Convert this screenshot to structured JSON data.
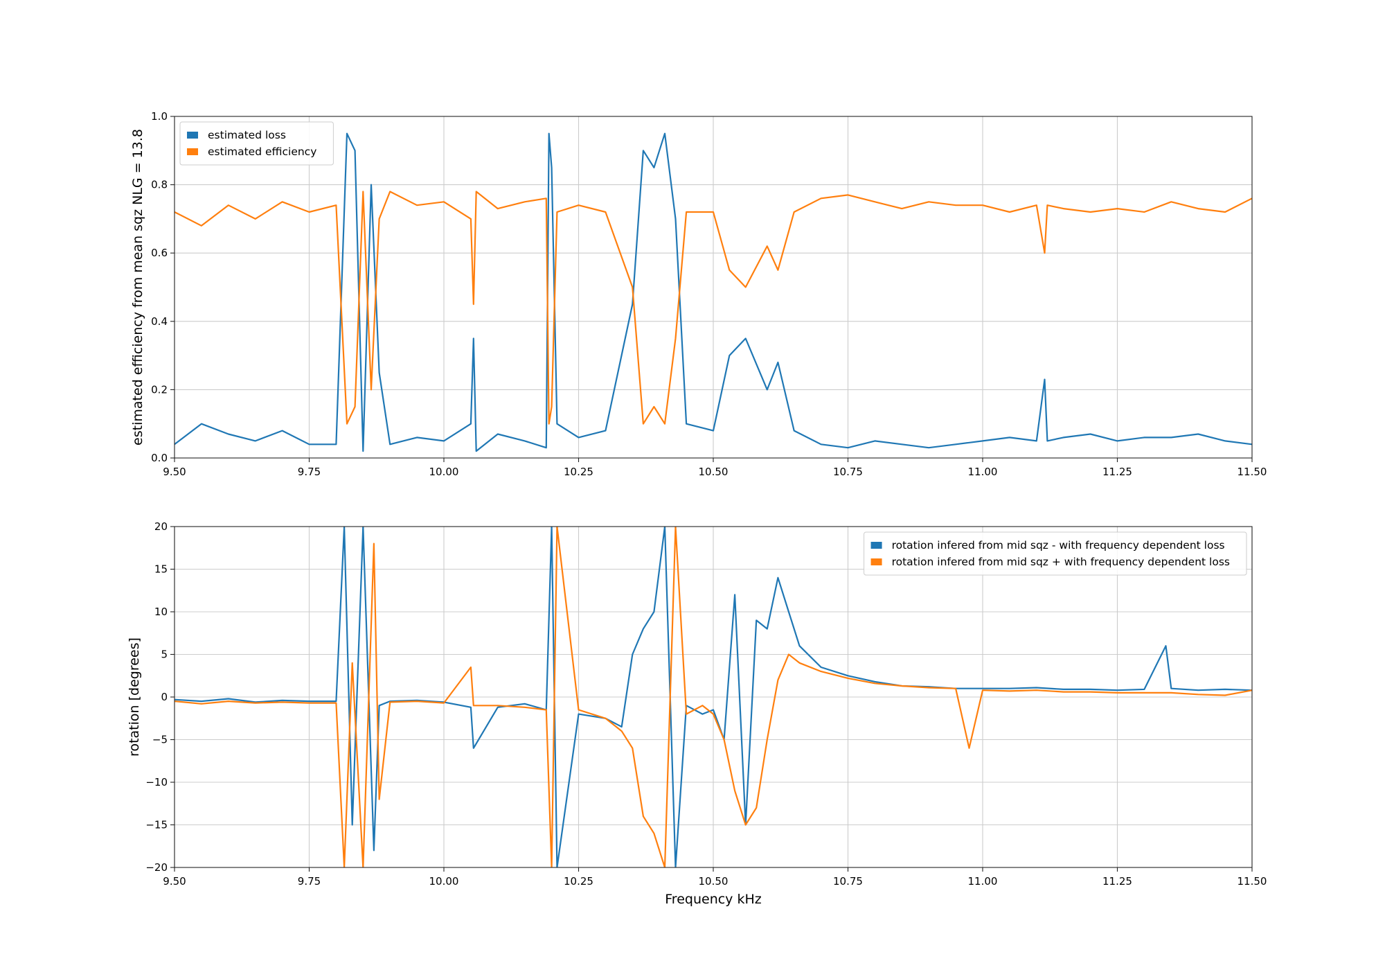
{
  "chart_data": [
    {
      "type": "line",
      "xlim": [
        9.5,
        11.5
      ],
      "ylim": [
        0,
        1
      ],
      "xticks": [
        "9.50",
        "9.75",
        "10.00",
        "10.25",
        "10.50",
        "10.75",
        "11.00",
        "11.25",
        "11.50"
      ],
      "yticks": [
        "0.0",
        "0.2",
        "0.4",
        "0.6",
        "0.8",
        "1.0"
      ],
      "ylabel": "estimated efficiency from mean sqz NLG = 13.8",
      "xlabel": "",
      "grid": true,
      "legend_position": "upper-left",
      "series": [
        {
          "name": "estimated loss",
          "color": "#1f77b4",
          "x": [
            9.5,
            9.55,
            9.6,
            9.65,
            9.7,
            9.75,
            9.8,
            9.82,
            9.835,
            9.85,
            9.865,
            9.88,
            9.9,
            9.95,
            10.0,
            10.05,
            10.055,
            10.06,
            10.1,
            10.15,
            10.19,
            10.195,
            10.2,
            10.21,
            10.25,
            10.3,
            10.35,
            10.37,
            10.39,
            10.41,
            10.43,
            10.45,
            10.5,
            10.53,
            10.56,
            10.6,
            10.62,
            10.65,
            10.7,
            10.75,
            10.8,
            10.85,
            10.9,
            10.95,
            11.0,
            11.05,
            11.1,
            11.115,
            11.12,
            11.15,
            11.2,
            11.25,
            11.3,
            11.35,
            11.4,
            11.45,
            11.5
          ],
          "y": [
            0.04,
            0.1,
            0.07,
            0.05,
            0.08,
            0.04,
            0.04,
            0.95,
            0.9,
            0.02,
            0.8,
            0.25,
            0.04,
            0.06,
            0.05,
            0.1,
            0.35,
            0.02,
            0.07,
            0.05,
            0.03,
            0.95,
            0.85,
            0.1,
            0.06,
            0.08,
            0.45,
            0.9,
            0.85,
            0.95,
            0.7,
            0.1,
            0.08,
            0.3,
            0.35,
            0.2,
            0.28,
            0.08,
            0.04,
            0.03,
            0.05,
            0.04,
            0.03,
            0.04,
            0.05,
            0.06,
            0.05,
            0.23,
            0.05,
            0.06,
            0.07,
            0.05,
            0.06,
            0.06,
            0.07,
            0.05,
            0.04
          ]
        },
        {
          "name": "estimated efficiency",
          "color": "#ff7f0e",
          "x": [
            9.5,
            9.55,
            9.6,
            9.65,
            9.7,
            9.75,
            9.8,
            9.82,
            9.835,
            9.85,
            9.865,
            9.88,
            9.9,
            9.95,
            10.0,
            10.05,
            10.055,
            10.06,
            10.1,
            10.15,
            10.19,
            10.195,
            10.2,
            10.21,
            10.25,
            10.3,
            10.35,
            10.37,
            10.39,
            10.41,
            10.43,
            10.45,
            10.5,
            10.53,
            10.56,
            10.6,
            10.62,
            10.65,
            10.7,
            10.75,
            10.8,
            10.85,
            10.9,
            10.95,
            11.0,
            11.05,
            11.1,
            11.115,
            11.12,
            11.15,
            11.2,
            11.25,
            11.3,
            11.35,
            11.4,
            11.45,
            11.5
          ],
          "y": [
            0.72,
            0.68,
            0.74,
            0.7,
            0.75,
            0.72,
            0.74,
            0.1,
            0.15,
            0.78,
            0.2,
            0.7,
            0.78,
            0.74,
            0.75,
            0.7,
            0.45,
            0.78,
            0.73,
            0.75,
            0.76,
            0.1,
            0.15,
            0.72,
            0.74,
            0.72,
            0.5,
            0.1,
            0.15,
            0.1,
            0.35,
            0.72,
            0.72,
            0.55,
            0.5,
            0.62,
            0.55,
            0.72,
            0.76,
            0.77,
            0.75,
            0.73,
            0.75,
            0.74,
            0.74,
            0.72,
            0.74,
            0.6,
            0.74,
            0.73,
            0.72,
            0.73,
            0.72,
            0.75,
            0.73,
            0.72,
            0.76
          ]
        }
      ]
    },
    {
      "type": "line",
      "xlim": [
        9.5,
        11.5
      ],
      "ylim": [
        -20,
        20
      ],
      "xticks": [
        "9.50",
        "9.75",
        "10.00",
        "10.25",
        "10.50",
        "10.75",
        "11.00",
        "11.25",
        "11.50"
      ],
      "yticks": [
        "−20",
        "−15",
        "−10",
        "−5",
        "0",
        "5",
        "10",
        "15",
        "20"
      ],
      "ylabel": "rotation [degrees]",
      "xlabel": "Frequency kHz",
      "grid": true,
      "legend_position": "upper-right",
      "series": [
        {
          "name": "rotation infered from mid sqz - with frequency dependent loss",
          "color": "#1f77b4",
          "x": [
            9.5,
            9.55,
            9.6,
            9.65,
            9.7,
            9.75,
            9.8,
            9.815,
            9.83,
            9.85,
            9.87,
            9.88,
            9.9,
            9.95,
            10.0,
            10.05,
            10.055,
            10.1,
            10.15,
            10.19,
            10.2,
            10.21,
            10.25,
            10.3,
            10.33,
            10.35,
            10.37,
            10.39,
            10.41,
            10.43,
            10.45,
            10.48,
            10.5,
            10.52,
            10.54,
            10.56,
            10.58,
            10.6,
            10.62,
            10.64,
            10.66,
            10.7,
            10.75,
            10.8,
            10.85,
            10.9,
            10.95,
            11.0,
            11.05,
            11.1,
            11.15,
            11.2,
            11.25,
            11.3,
            11.34,
            11.35,
            11.4,
            11.45,
            11.5
          ],
          "y": [
            -0.3,
            -0.5,
            -0.2,
            -0.6,
            -0.4,
            -0.5,
            -0.5,
            20,
            -15,
            20,
            -18,
            -1,
            -0.5,
            -0.4,
            -0.6,
            -1.2,
            -6,
            -1.2,
            -0.8,
            -1.5,
            20,
            -20,
            -2,
            -2.5,
            -3.5,
            5,
            8,
            10,
            20,
            -20,
            -1,
            -2,
            -1.5,
            -5,
            12,
            -15,
            9,
            8,
            14,
            10,
            6,
            3.5,
            2.5,
            1.8,
            1.3,
            1.2,
            1,
            1,
            1,
            1.1,
            0.9,
            0.9,
            0.8,
            0.9,
            6,
            1,
            0.8,
            0.9,
            0.8
          ]
        },
        {
          "name": "rotation infered from mid sqz + with frequency dependent loss",
          "color": "#ff7f0e",
          "x": [
            9.5,
            9.55,
            9.6,
            9.65,
            9.7,
            9.75,
            9.8,
            9.815,
            9.83,
            9.85,
            9.87,
            9.88,
            9.9,
            9.95,
            10.0,
            10.05,
            10.055,
            10.1,
            10.15,
            10.19,
            10.2,
            10.21,
            10.25,
            10.3,
            10.33,
            10.35,
            10.37,
            10.39,
            10.41,
            10.43,
            10.45,
            10.48,
            10.5,
            10.52,
            10.54,
            10.56,
            10.58,
            10.6,
            10.62,
            10.64,
            10.66,
            10.7,
            10.75,
            10.8,
            10.85,
            10.9,
            10.95,
            10.975,
            11.0,
            11.05,
            11.1,
            11.15,
            11.2,
            11.25,
            11.3,
            11.35,
            11.4,
            11.45,
            11.5
          ],
          "y": [
            -0.5,
            -0.8,
            -0.5,
            -0.7,
            -0.6,
            -0.7,
            -0.7,
            -20,
            4,
            -20,
            18,
            -12,
            -0.6,
            -0.5,
            -0.7,
            3.5,
            -1,
            -1,
            -1.2,
            -1.5,
            -20,
            20,
            -1.5,
            -2.5,
            -4,
            -6,
            -14,
            -16,
            -20,
            20,
            -2,
            -1,
            -2,
            -5,
            -11,
            -15,
            -13,
            -5,
            2,
            5,
            4,
            3,
            2.2,
            1.6,
            1.3,
            1.1,
            1,
            -6,
            0.8,
            0.7,
            0.8,
            0.6,
            0.6,
            0.5,
            0.5,
            0.5,
            0.3,
            0.2,
            0.8
          ]
        }
      ]
    }
  ]
}
